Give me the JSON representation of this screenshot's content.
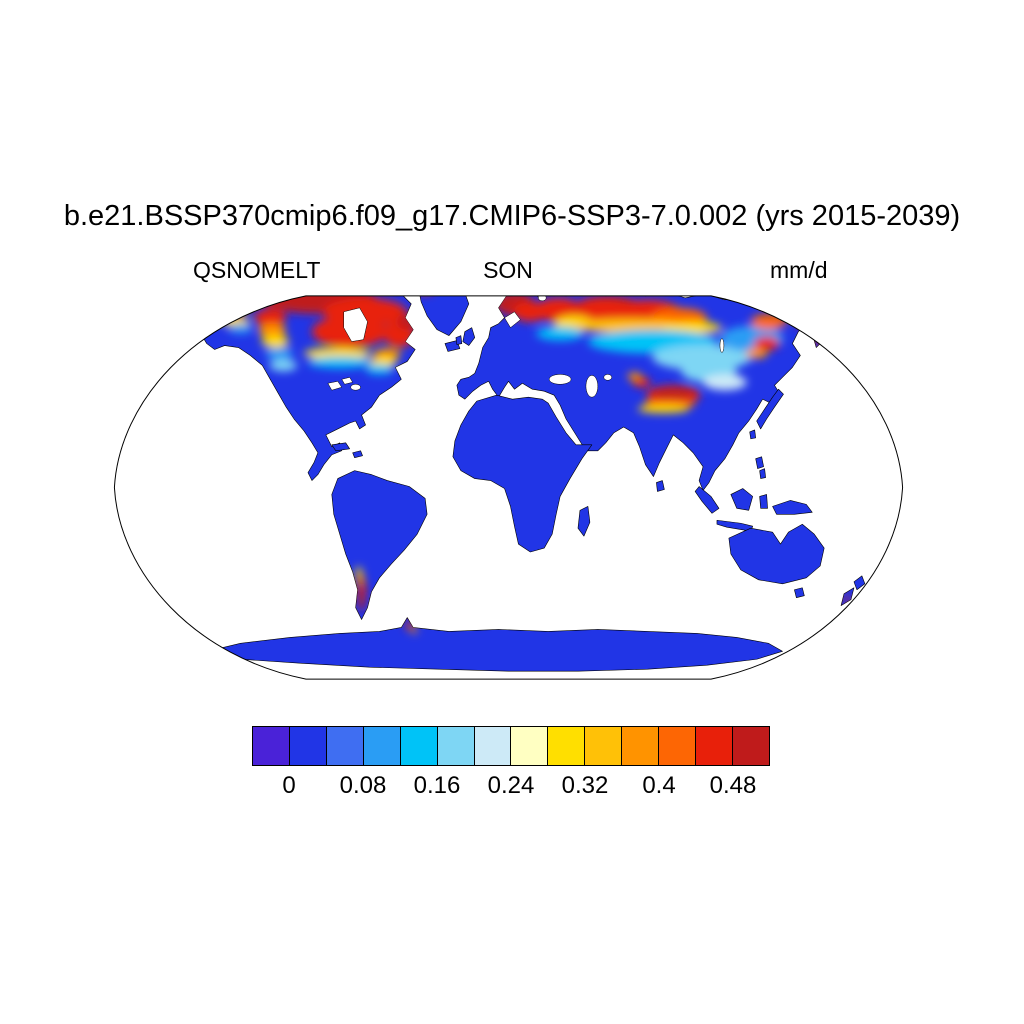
{
  "title": "b.e21.BSSP370cmip6.f09_g17.CMIP6-SSP3-7.0.002 (yrs 2015-2039)",
  "labels": {
    "variable": "QSNOMELT",
    "season": "SON",
    "units": "mm/d"
  },
  "chart_data": {
    "type": "heatmap",
    "title": "b.e21.BSSP370cmip6.f09_g17.CMIP6-SSP3-7.0.002 (yrs 2015-2039)",
    "variable": "QSNOMELT",
    "season": "SON",
    "units": "mm/d",
    "projection": "Robinson world map, ocean masked white, land-only field",
    "land_base_color": "#2135e6",
    "ocean_color": "#ffffff",
    "colorbar": {
      "orientation": "horizontal",
      "n_cells": 14,
      "levels": [
        0,
        0.04,
        0.08,
        0.12,
        0.16,
        0.2,
        0.24,
        0.28,
        0.32,
        0.36,
        0.4,
        0.44,
        0.48
      ],
      "tick_labels": [
        "0",
        "0.08",
        "0.16",
        "0.24",
        "0.32",
        "0.4",
        "0.48"
      ],
      "colors": [
        "#4a22d8",
        "#2135e6",
        "#3f6ef2",
        "#2a9df4",
        "#00c3f7",
        "#7ed6f4",
        "#cdeaf7",
        "#ffffc2",
        "#ffdf00",
        "#ffc107",
        "#ff9300",
        "#fd6604",
        "#e8200a",
        "#bf1b1b"
      ],
      "cell_span_mm_per_day": 0.04
    },
    "high_value_regions_gt_0.4": [
      "Alaska",
      "Canadian Arctic / northern Canada around Hudson Bay",
      "Labrador and Quebec",
      "Scandinavia and northwestern Russia",
      "western and central Siberian Arctic",
      "northeastern Siberia / Chukotka",
      "Kamchatka",
      "Tibetan Plateau / Himalaya",
      "southern Andes (Patagonia)",
      "Antarctic Peninsula tip"
    ],
    "moderate_value_regions_0.1_to_0.3": [
      "western Canada / Rocky Mountains (yellow-cyan gradient)",
      "central and eastern Siberia (cyan / light blue)",
      "Mongolia and northeastern China (light blue / pale)"
    ],
    "low_value_regions_near_0": [
      "contiguous United States and Mexico",
      "South America except southern Andes",
      "Africa",
      "India, Southeast Asia, Indonesia",
      "Australia",
      "Greenland interior",
      "Antarctica main ice sheet"
    ]
  }
}
